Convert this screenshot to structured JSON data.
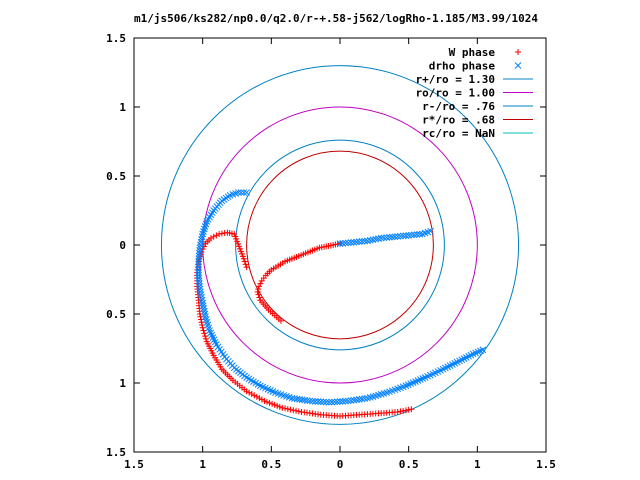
{
  "chart_data": {
    "type": "scatter",
    "title": "m1/js506/ks282/np0.0/q2.0/r-+.58-j562/logRho-1.185/M3.99/1024",
    "xlim": [
      -1.5,
      1.5
    ],
    "ylim": [
      -1.5,
      1.5
    ],
    "xticks": [
      -1.5,
      -1,
      -0.5,
      0,
      0.5,
      1,
      1.5
    ],
    "yticks": [
      -1.5,
      -1,
      -0.5,
      0,
      0.5,
      1,
      1.5
    ],
    "xtick_labels": [
      "1.5",
      "1",
      "0.5",
      "0",
      "0.5",
      "1",
      "1.5"
    ],
    "ytick_labels": [
      "1.5",
      "1",
      "0.5",
      "0",
      "0.5",
      "1",
      "1.5"
    ],
    "grid": false,
    "legend_position": "top-right",
    "colors": {
      "w_phase": "#ff0000",
      "drho_phase": "#0080ff",
      "r_plus": "#0080c0",
      "ro": "#c000c0",
      "r_minus": "#0080c0",
      "r_star": "#c00000",
      "rc": "#00c0c0"
    },
    "circles": [
      {
        "name": "r+/ro = 1.30",
        "radius": 1.3
      },
      {
        "name": "ro/ro = 1.00",
        "radius": 1.0
      },
      {
        "name": "r-/ro = .76",
        "radius": 0.76
      },
      {
        "name": "r*/ro = .68",
        "radius": 0.68
      },
      {
        "name": "rc/ro = NaN",
        "radius": null
      }
    ],
    "series": [
      {
        "name": "W phase",
        "marker": "+",
        "points": [
          [
            0.0,
            0.01
          ],
          [
            -0.05,
            0.0
          ],
          [
            -0.1,
            -0.01
          ],
          [
            -0.15,
            -0.02
          ],
          [
            -0.2,
            -0.04
          ],
          [
            -0.25,
            -0.06
          ],
          [
            -0.3,
            -0.08
          ],
          [
            -0.35,
            -0.1
          ],
          [
            -0.4,
            -0.12
          ],
          [
            -0.45,
            -0.15
          ],
          [
            -0.5,
            -0.18
          ],
          [
            -0.54,
            -0.22
          ],
          [
            -0.57,
            -0.26
          ],
          [
            -0.59,
            -0.3
          ],
          [
            -0.6,
            -0.34
          ],
          [
            -0.58,
            -0.4
          ],
          [
            -0.52,
            -0.47
          ],
          [
            -0.43,
            -0.55
          ],
          [
            -0.68,
            -0.16
          ],
          [
            -0.7,
            -0.1
          ],
          [
            -0.77,
            0.08
          ],
          [
            -0.82,
            0.09
          ],
          [
            -0.88,
            0.08
          ],
          [
            -0.94,
            0.05
          ],
          [
            -0.98,
            0.01
          ],
          [
            -1.01,
            -0.05
          ],
          [
            -1.03,
            -0.12
          ],
          [
            -1.04,
            -0.2
          ],
          [
            -1.04,
            -0.3
          ],
          [
            -1.03,
            -0.4
          ],
          [
            -1.02,
            -0.5
          ],
          [
            -1.0,
            -0.6
          ],
          [
            -0.97,
            -0.7
          ],
          [
            -0.92,
            -0.8
          ],
          [
            -0.86,
            -0.9
          ],
          [
            -0.78,
            -0.98
          ],
          [
            -0.68,
            -1.06
          ],
          [
            -0.55,
            -1.13
          ],
          [
            -0.42,
            -1.18
          ],
          [
            -0.28,
            -1.21
          ],
          [
            -0.14,
            -1.23
          ],
          [
            0.0,
            -1.24
          ],
          [
            0.14,
            -1.23
          ],
          [
            0.28,
            -1.22
          ],
          [
            0.42,
            -1.21
          ],
          [
            0.52,
            -1.19
          ]
        ]
      },
      {
        "name": "drho phase",
        "marker": "x",
        "points": [
          [
            0.0,
            0.01
          ],
          [
            0.1,
            0.02
          ],
          [
            0.2,
            0.03
          ],
          [
            0.3,
            0.05
          ],
          [
            0.4,
            0.06
          ],
          [
            0.5,
            0.07
          ],
          [
            0.6,
            0.08
          ],
          [
            0.66,
            0.1
          ],
          [
            -0.68,
            0.38
          ],
          [
            -0.74,
            0.38
          ],
          [
            -0.8,
            0.36
          ],
          [
            -0.86,
            0.32
          ],
          [
            -0.92,
            0.25
          ],
          [
            -0.97,
            0.17
          ],
          [
            -1.0,
            0.08
          ],
          [
            -1.02,
            -0.02
          ],
          [
            -1.03,
            -0.12
          ],
          [
            -1.03,
            -0.22
          ],
          [
            -1.02,
            -0.32
          ],
          [
            -1.0,
            -0.42
          ],
          [
            -0.98,
            -0.52
          ],
          [
            -0.95,
            -0.62
          ],
          [
            -0.9,
            -0.72
          ],
          [
            -0.84,
            -0.81
          ],
          [
            -0.77,
            -0.89
          ],
          [
            -0.68,
            -0.96
          ],
          [
            -0.58,
            -1.02
          ],
          [
            -0.47,
            -1.07
          ],
          [
            -0.35,
            -1.11
          ],
          [
            -0.22,
            -1.13
          ],
          [
            -0.08,
            -1.14
          ],
          [
            0.06,
            -1.13
          ],
          [
            0.2,
            -1.11
          ],
          [
            0.34,
            -1.07
          ],
          [
            0.48,
            -1.02
          ],
          [
            0.62,
            -0.96
          ],
          [
            0.75,
            -0.9
          ],
          [
            0.87,
            -0.84
          ],
          [
            0.97,
            -0.79
          ],
          [
            1.04,
            -0.76
          ]
        ]
      }
    ]
  }
}
